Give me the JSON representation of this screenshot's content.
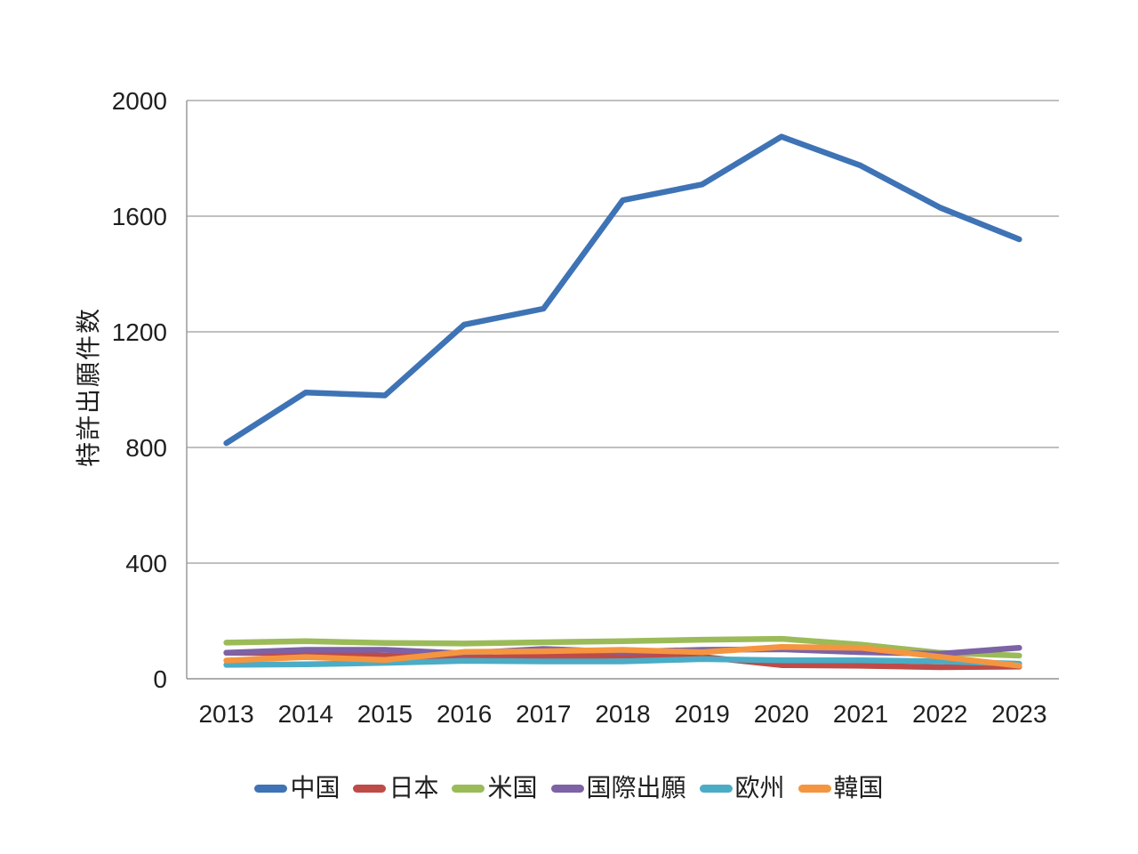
{
  "colors": {
    "background": "#FFFFFF",
    "axis": "#9A9A9A",
    "text": "#1F1F1F"
  },
  "chart_data": {
    "type": "line",
    "title": "",
    "xlabel": "",
    "ylabel": "特許出願件数",
    "ylim": [
      0,
      2000
    ],
    "yticks": [
      0,
      400,
      800,
      1200,
      1600,
      2000
    ],
    "grid": true,
    "legend_position": "bottom",
    "x": [
      "2013",
      "2014",
      "2015",
      "2016",
      "2017",
      "2018",
      "2019",
      "2020",
      "2021",
      "2022",
      "2023"
    ],
    "series": [
      {
        "name": "中国",
        "slug": "china",
        "color": "#3E73B5",
        "values": [
          815,
          990,
          980,
          1225,
          1280,
          1655,
          1710,
          1875,
          1775,
          1630,
          1520
        ]
      },
      {
        "name": "日本",
        "slug": "japan",
        "color": "#BE4B48",
        "values": [
          90,
          88,
          80,
          72,
          77,
          80,
          76,
          47,
          45,
          40,
          42
        ]
      },
      {
        "name": "米国",
        "slug": "usa",
        "color": "#9BBB59",
        "values": [
          125,
          130,
          124,
          122,
          126,
          130,
          135,
          138,
          118,
          90,
          80
        ]
      },
      {
        "name": "国際出願",
        "slug": "international-application",
        "color": "#7D62A6",
        "values": [
          90,
          100,
          100,
          88,
          103,
          93,
          100,
          102,
          92,
          86,
          107
        ]
      },
      {
        "name": "欧州",
        "slug": "europe",
        "color": "#4BACC6",
        "values": [
          48,
          50,
          55,
          62,
          60,
          60,
          68,
          64,
          64,
          60,
          52
        ]
      },
      {
        "name": "韓国",
        "slug": "korea",
        "color": "#F5953F",
        "values": [
          63,
          75,
          65,
          93,
          95,
          100,
          92,
          110,
          107,
          76,
          45
        ]
      }
    ]
  }
}
